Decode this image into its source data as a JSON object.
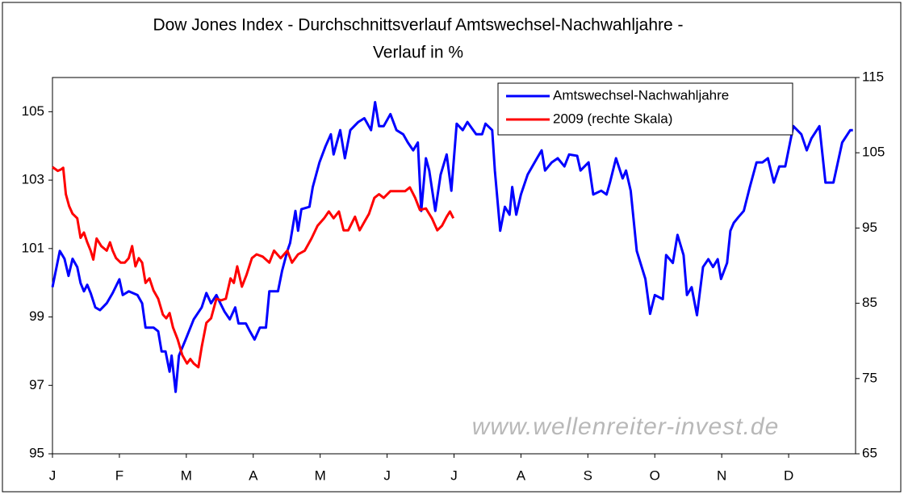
{
  "chart_data": {
    "type": "line",
    "title": [
      "Dow Jones Index - Durchschnittsverlauf Amtswechsel-Nachwahljahre -",
      "Verlauf in %"
    ],
    "annotation": "www.wellenreiter-invest.de",
    "xlim": [
      0,
      12
    ],
    "xticks": [
      {
        "value": 0,
        "label": "J"
      },
      {
        "value": 1,
        "label": "F"
      },
      {
        "value": 2,
        "label": "M"
      },
      {
        "value": 3,
        "label": "A"
      },
      {
        "value": 4,
        "label": "M"
      },
      {
        "value": 5,
        "label": "J"
      },
      {
        "value": 6,
        "label": "J"
      },
      {
        "value": 7,
        "label": "A"
      },
      {
        "value": 8,
        "label": "S"
      },
      {
        "value": 9,
        "label": "O"
      },
      {
        "value": 10,
        "label": "N"
      },
      {
        "value": 11,
        "label": "D"
      }
    ],
    "ylim": [
      95,
      106
    ],
    "yticks": [
      95,
      97,
      99,
      101,
      103,
      105
    ],
    "y2lim": [
      65,
      115
    ],
    "y2ticks": [
      65,
      75,
      85,
      95,
      105,
      115
    ],
    "grid": false,
    "legend": "upper right",
    "series": [
      {
        "name": "Amtswechsel-Nachwahljahre",
        "color": "#0000ff",
        "axis": "y",
        "x": [
          0,
          0.11,
          0.18,
          0.24,
          0.3,
          0.37,
          0.42,
          0.47,
          0.52,
          0.57,
          0.64,
          0.71,
          0.81,
          0.9,
          1.0,
          1.05,
          1.14,
          1.27,
          1.34,
          1.39,
          1.51,
          1.58,
          1.63,
          1.69,
          1.75,
          1.78,
          1.84,
          1.89,
          1.99,
          2.11,
          2.23,
          2.3,
          2.37,
          2.45,
          2.49,
          2.57,
          2.65,
          2.73,
          2.78,
          2.89,
          2.95,
          3.02,
          3.1,
          3.19,
          3.24,
          3.37,
          3.43,
          3.51,
          3.55,
          3.63,
          3.67,
          3.72,
          3.84,
          3.89,
          3.99,
          4.08,
          4.16,
          4.2,
          4.3,
          4.37,
          4.45,
          4.57,
          4.66,
          4.76,
          4.82,
          4.88,
          4.95,
          5.05,
          5.14,
          5.24,
          5.31,
          5.39,
          5.46,
          5.51,
          5.58,
          5.63,
          5.72,
          5.8,
          5.89,
          5.96,
          6.04,
          6.13,
          6.2,
          6.33,
          6.42,
          6.47,
          6.57,
          6.61,
          6.69,
          6.76,
          6.83,
          6.87,
          6.93,
          7.0,
          7.1,
          7.17,
          7.24,
          7.31,
          7.36,
          7.46,
          7.55,
          7.65,
          7.72,
          7.84,
          7.89,
          8.01,
          8.08,
          8.2,
          8.28,
          8.33,
          8.42,
          8.52,
          8.57,
          8.64,
          8.73,
          8.86,
          8.93,
          9.0,
          9.12,
          9.17,
          9.27,
          9.34,
          9.43,
          9.48,
          9.55,
          9.63,
          9.72,
          9.8,
          9.87,
          9.94,
          9.99,
          10.08,
          10.13,
          10.18,
          10.25,
          10.33,
          10.42,
          10.52,
          10.61,
          10.69,
          10.78,
          10.86,
          10.95,
          11.07,
          11.19,
          11.27,
          11.34,
          11.46,
          11.55,
          11.67,
          11.8,
          11.92,
          11.96
        ],
        "values": [
          99.87,
          100.93,
          100.7,
          100.2,
          100.7,
          100.46,
          99.99,
          99.75,
          99.94,
          99.7,
          99.28,
          99.2,
          99.4,
          99.7,
          100.1,
          99.64,
          99.75,
          99.64,
          99.4,
          98.69,
          98.69,
          98.58,
          97.99,
          97.99,
          97.4,
          97.87,
          96.81,
          97.87,
          98.34,
          98.93,
          99.28,
          99.7,
          99.4,
          99.64,
          99.47,
          99.16,
          98.93,
          99.28,
          98.81,
          98.81,
          98.58,
          98.34,
          98.69,
          98.69,
          99.75,
          99.75,
          100.34,
          100.93,
          101.16,
          102.1,
          101.52,
          102.15,
          102.22,
          102.8,
          103.52,
          103.99,
          104.34,
          103.75,
          104.46,
          103.64,
          104.46,
          104.7,
          104.81,
          104.46,
          105.28,
          104.58,
          104.58,
          104.93,
          104.46,
          104.34,
          104.1,
          103.87,
          104.1,
          102.1,
          103.64,
          103.28,
          102.1,
          103.16,
          103.75,
          102.69,
          104.65,
          104.46,
          104.7,
          104.34,
          104.34,
          104.65,
          104.46,
          103.28,
          101.52,
          102.22,
          101.99,
          102.8,
          101.99,
          102.58,
          103.16,
          103.4,
          103.64,
          103.87,
          103.28,
          103.52,
          103.64,
          103.4,
          103.75,
          103.71,
          103.28,
          103.52,
          102.58,
          102.69,
          102.58,
          102.93,
          103.64,
          103.05,
          103.28,
          102.69,
          100.93,
          100.11,
          99.09,
          99.64,
          99.52,
          100.81,
          100.58,
          101.4,
          100.81,
          99.64,
          99.87,
          99.05,
          100.46,
          100.69,
          100.46,
          100.69,
          100.11,
          100.58,
          101.52,
          101.75,
          101.92,
          102.1,
          102.8,
          103.52,
          103.52,
          103.64,
          102.93,
          103.4,
          103.4,
          104.58,
          104.34,
          103.87,
          104.22,
          104.58,
          102.93,
          102.93,
          104.1,
          104.46,
          104.46
        ]
      },
      {
        "name": "2009 (rechte Skala)",
        "color": "#ff0000",
        "axis": "y2",
        "x": [
          0,
          0.08,
          0.13,
          0.16,
          0.2,
          0.25,
          0.3,
          0.37,
          0.42,
          0.47,
          0.52,
          0.57,
          0.61,
          0.66,
          0.73,
          0.81,
          0.86,
          0.9,
          0.95,
          1.02,
          1.08,
          1.14,
          1.19,
          1.24,
          1.29,
          1.34,
          1.39,
          1.45,
          1.51,
          1.58,
          1.65,
          1.7,
          1.75,
          1.8,
          1.87,
          1.94,
          2.01,
          2.06,
          2.11,
          2.18,
          2.23,
          2.3,
          2.37,
          2.45,
          2.52,
          2.59,
          2.66,
          2.71,
          2.76,
          2.83,
          2.9,
          2.98,
          3.05,
          3.14,
          3.24,
          3.31,
          3.41,
          3.51,
          3.58,
          3.67,
          3.77,
          3.87,
          3.96,
          4.06,
          4.13,
          4.2,
          4.28,
          4.35,
          4.42,
          4.52,
          4.59,
          4.66,
          4.73,
          4.81,
          4.88,
          4.95,
          5.05,
          5.17,
          5.27,
          5.34,
          5.42,
          5.49,
          5.58,
          5.67,
          5.75,
          5.82,
          5.89,
          5.94,
          5.99
        ],
        "values": [
          103.1,
          102.6,
          102.8,
          103.0,
          99.5,
          97.9,
          96.9,
          96.3,
          93.7,
          94.4,
          93.1,
          92.0,
          90.8,
          93.6,
          92.6,
          92.0,
          93.1,
          92.0,
          91.0,
          90.4,
          90.4,
          91.0,
          92.6,
          89.9,
          91.0,
          90.4,
          87.7,
          88.3,
          86.7,
          85.6,
          83.5,
          83.0,
          83.7,
          81.8,
          80.2,
          78.1,
          77.0,
          77.6,
          77.0,
          76.5,
          79.2,
          82.4,
          83.0,
          85.6,
          85.4,
          85.6,
          88.3,
          87.7,
          89.9,
          87.2,
          88.8,
          91.0,
          91.5,
          91.2,
          90.4,
          92.0,
          91.0,
          92.0,
          90.4,
          91.5,
          92.0,
          93.6,
          95.3,
          96.3,
          97.2,
          96.3,
          97.2,
          94.7,
          94.7,
          96.5,
          94.7,
          95.8,
          96.9,
          99.0,
          99.5,
          99.0,
          99.9,
          99.9,
          99.9,
          100.4,
          99.0,
          97.4,
          97.6,
          96.3,
          94.7,
          95.3,
          96.5,
          97.2,
          96.3
        ]
      }
    ]
  }
}
